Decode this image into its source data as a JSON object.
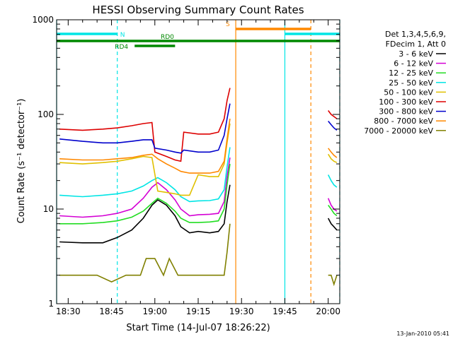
{
  "chart_data": {
    "type": "line",
    "title": "HESSI Observing Summary Count Rates",
    "xlabel": "Start Time (14-Jul-07 18:26:22)",
    "ylabel": "Count Rate (s⁻¹ detector⁻¹)",
    "yscale": "log",
    "ylim": [
      1,
      1000
    ],
    "xlim": [
      "18:26",
      "20:04"
    ],
    "x_ticks": [
      "18:30",
      "18:45",
      "19:00",
      "19:15",
      "19:30",
      "19:45",
      "20:00"
    ],
    "y_ticks": [
      "1",
      "10",
      "100",
      "1000"
    ],
    "legend_title": [
      "Det 1,3,4,5,6,9,",
      "FDecim 1, Att 0"
    ],
    "legend_position": "right",
    "footer_date": "13-Jan-2010 05:41",
    "series": [
      {
        "name": "3 - 6 keV",
        "color": "#000000",
        "x": [
          "18:27",
          "18:35",
          "18:42",
          "18:47",
          "18:52",
          "18:56",
          "18:59",
          "19:01",
          "19:04",
          "19:07",
          "19:09",
          "19:12",
          "19:15",
          "19:19",
          "19:22",
          "19:24",
          "19:25",
          "19:26"
        ],
        "y": [
          4.5,
          4.4,
          4.4,
          5.0,
          6.0,
          8.0,
          11.0,
          12.5,
          11.0,
          8.5,
          6.5,
          5.6,
          5.8,
          5.6,
          5.8,
          7.0,
          12.0,
          18.0
        ]
      },
      {
        "name": "6 - 12 keV",
        "color": "#d400d4",
        "x": [
          "18:27",
          "18:35",
          "18:42",
          "18:47",
          "18:52",
          "18:56",
          "18:59",
          "19:01",
          "19:04",
          "19:07",
          "19:09",
          "19:12",
          "19:15",
          "19:19",
          "19:22",
          "19:24",
          "19:25",
          "19:26"
        ],
        "y": [
          8.5,
          8.2,
          8.5,
          9.0,
          10.0,
          13.0,
          17.0,
          19.0,
          16.0,
          12.5,
          10.0,
          8.5,
          8.7,
          8.8,
          9.0,
          12.0,
          22.0,
          35.0
        ]
      },
      {
        "name": "12 - 25 keV",
        "color": "#22dd22",
        "x": [
          "18:27",
          "18:35",
          "18:42",
          "18:47",
          "18:52",
          "18:56",
          "18:59",
          "19:01",
          "19:04",
          "19:07",
          "19:09",
          "19:12",
          "19:15",
          "19:19",
          "19:22",
          "19:24",
          "19:25",
          "19:26"
        ],
        "y": [
          7.0,
          7.0,
          7.2,
          7.5,
          8.2,
          9.5,
          11.5,
          13.0,
          11.5,
          9.5,
          8.0,
          7.2,
          7.2,
          7.3,
          7.5,
          10.0,
          18.0,
          30.0
        ]
      },
      {
        "name": "25 - 50 keV",
        "color": "#00e5e5",
        "x": [
          "18:27",
          "18:35",
          "18:42",
          "18:47",
          "18:52",
          "18:56",
          "18:59",
          "19:01",
          "19:04",
          "19:07",
          "19:09",
          "19:12",
          "19:15",
          "19:19",
          "19:22",
          "19:24",
          "19:25",
          "19:26"
        ],
        "y": [
          14.0,
          13.5,
          14.0,
          14.5,
          15.5,
          17.5,
          20.0,
          21.5,
          19.0,
          16.0,
          13.5,
          12.0,
          12.2,
          12.3,
          12.8,
          16.0,
          28.0,
          45.0
        ]
      },
      {
        "name": "50 - 100 keV",
        "color": "#e0c000",
        "x": [
          "18:27",
          "18:35",
          "18:42",
          "18:47",
          "18:52",
          "18:56",
          "18:59",
          "19:01",
          "19:04",
          "19:07",
          "19:09",
          "19:12",
          "19:15",
          "19:19",
          "19:22",
          "19:24",
          "19:25",
          "19:26"
        ],
        "y": [
          31.0,
          30.0,
          31.0,
          32.0,
          34.0,
          36.0,
          35.0,
          15.5,
          15.0,
          14.5,
          14.0,
          14.0,
          23.0,
          22.0,
          22.0,
          30.0,
          50.0,
          80.0
        ]
      },
      {
        "name": "100 - 300 keV",
        "color": "#dd0000",
        "x": [
          "18:27",
          "18:35",
          "18:42",
          "18:47",
          "18:52",
          "18:56",
          "18:59",
          "19:00",
          "19:04",
          "19:07",
          "19:09",
          "19:10",
          "19:15",
          "19:19",
          "19:22",
          "19:24",
          "19:25",
          "19:26"
        ],
        "y": [
          70.0,
          68.0,
          70.0,
          72.0,
          76.0,
          80.0,
          82.0,
          40.0,
          36.0,
          33.0,
          32.0,
          65.0,
          62.0,
          62.0,
          65.0,
          90.0,
          140.0,
          190.0
        ]
      },
      {
        "name": "300 - 800 keV",
        "color": "#0000cc",
        "x": [
          "18:27",
          "18:35",
          "18:42",
          "18:47",
          "18:52",
          "18:56",
          "18:59",
          "19:00",
          "19:04",
          "19:07",
          "19:09",
          "19:10",
          "19:15",
          "19:19",
          "19:22",
          "19:24",
          "19:25",
          "19:26"
        ],
        "y": [
          55.0,
          52.0,
          50.0,
          50.0,
          52.0,
          54.0,
          54.0,
          44.0,
          42.0,
          40.0,
          39.0,
          42.0,
          40.0,
          40.0,
          42.0,
          60.0,
          90.0,
          130.0
        ]
      },
      {
        "name": "800 - 7000 keV",
        "color": "#ff8800",
        "x": [
          "18:27",
          "18:35",
          "18:42",
          "18:47",
          "18:52",
          "18:56",
          "18:59",
          "19:01",
          "19:04",
          "19:07",
          "19:09",
          "19:12",
          "19:15",
          "19:19",
          "19:22",
          "19:24",
          "19:25",
          "19:26"
        ],
        "y": [
          34.0,
          33.0,
          33.0,
          34.0,
          35.0,
          37.0,
          38.0,
          34.0,
          30.0,
          27.0,
          25.0,
          24.0,
          24.0,
          24.0,
          25.0,
          32.0,
          55.0,
          90.0
        ]
      },
      {
        "name": "7000 - 20000 keV",
        "color": "#808000",
        "x": [
          "18:27",
          "18:40",
          "18:45",
          "18:50",
          "18:55",
          "18:57",
          "19:00",
          "19:03",
          "19:05",
          "19:08",
          "19:12",
          "19:18",
          "19:24",
          "19:25",
          "19:26"
        ],
        "y": [
          2.0,
          2.0,
          1.7,
          2.0,
          2.0,
          3.0,
          3.0,
          2.0,
          3.0,
          2.0,
          2.0,
          2.0,
          2.0,
          3.5,
          7.0
        ]
      }
    ],
    "late_segment": {
      "x": [
        "20:00",
        "20:01",
        "20:02",
        "20:03"
      ],
      "values": {
        "3 - 6 keV": [
          8.0,
          7.0,
          6.5,
          6.0
        ],
        "6 - 12 keV": [
          13.0,
          11.0,
          10.0,
          9.5
        ],
        "12 - 25 keV": [
          11.0,
          10.0,
          9.0,
          8.5
        ],
        "25 - 50 keV": [
          23.0,
          20.0,
          18.0,
          17.0
        ],
        "50 - 100 keV": [
          38.0,
          34.0,
          32.0,
          31.0
        ],
        "100 - 300 keV": [
          110.0,
          100.0,
          95.0,
          90.0
        ],
        "300 - 800 keV": [
          85.0,
          78.0,
          72.0,
          68.0
        ],
        "800 - 7000 keV": [
          44.0,
          40.0,
          37.0,
          35.0
        ],
        "7000 - 20000 keV": [
          2.0,
          2.0,
          1.6,
          2.0
        ]
      }
    },
    "flag_bars": [
      {
        "label": "N",
        "color": "#00e5e5",
        "level": 1,
        "segments": [
          [
            "18:26",
            "18:47"
          ],
          [
            "19:45",
            "20:04"
          ]
        ]
      },
      {
        "label": "S",
        "color": "#ff8800",
        "level": 2,
        "segments": [
          [
            "19:28",
            "19:54"
          ]
        ]
      },
      {
        "label": "RD0",
        "color": "#008800",
        "level": 0,
        "segments": [
          [
            "18:26",
            "20:04"
          ]
        ]
      },
      {
        "label": "RD4",
        "color": "#008800",
        "level": 3,
        "segments": [
          [
            "18:53",
            "19:07"
          ]
        ]
      }
    ],
    "vertical_markers": [
      {
        "x": "18:26",
        "color": "#00e5e5",
        "style": "solid"
      },
      {
        "x": "18:47",
        "color": "#00e5e5",
        "style": "dashed"
      },
      {
        "x": "19:28",
        "color": "#ff8800",
        "style": "solid"
      },
      {
        "x": "19:45",
        "color": "#00e5e5",
        "style": "solid"
      },
      {
        "x": "19:54",
        "color": "#ff8800",
        "style": "dashed"
      },
      {
        "x": "20:04",
        "color": "#00e5e5",
        "style": "dashed"
      }
    ]
  }
}
